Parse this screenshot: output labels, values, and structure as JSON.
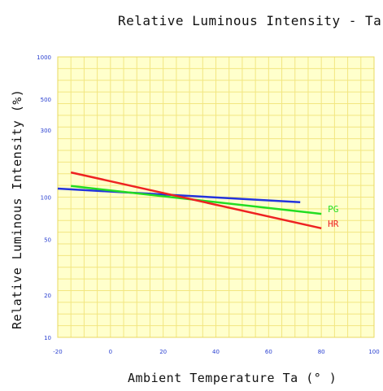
{
  "chart_data": {
    "type": "line",
    "title": "Relative Luminous Intensity - Ta",
    "xlabel": "Ambient Temperature Ta (° )",
    "ylabel": "Relative Luminous Intensity (%)",
    "x_ticks": [
      -20,
      0,
      20,
      40,
      60,
      80,
      100
    ],
    "x_tick_labels": [
      "-20",
      "0",
      "20",
      "40",
      "60",
      "80",
      "100"
    ],
    "xlim": [
      -20,
      100
    ],
    "y_scale": "log",
    "y_ticks": [
      10,
      20,
      50,
      100,
      300,
      500,
      1000
    ],
    "y_tick_labels": [
      "10",
      "20",
      "50",
      "100",
      "300",
      "500",
      "1000"
    ],
    "ylim": [
      10,
      1000
    ],
    "grid": true,
    "series": [
      {
        "name": "",
        "color": "#2233dd",
        "x": [
          -20,
          72
        ],
        "y": [
          115,
          92
        ]
      },
      {
        "name": "PG",
        "color": "#22dd22",
        "x": [
          -15,
          80
        ],
        "y": [
          120,
          76
        ]
      },
      {
        "name": "HR",
        "color": "#ee2222",
        "x": [
          -15,
          80
        ],
        "y": [
          150,
          60
        ]
      }
    ]
  }
}
